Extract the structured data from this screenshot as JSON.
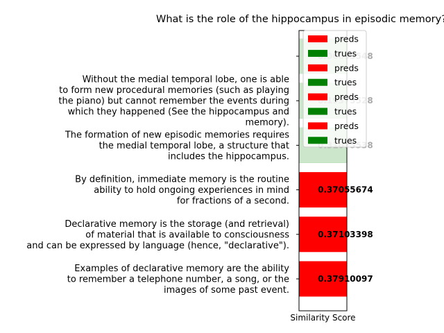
{
  "chart_data": {
    "type": "bar",
    "orientation": "horizontal",
    "title": "What is the role of the hippocampus in episodic memory?",
    "xlabel": "Similarity Score",
    "ylabel": "",
    "xlim": [
      0,
      1
    ],
    "categories": [
      "Examples of declarative memory are the ability\nto remember a telephone number, a song, or the\nimages of some past event.",
      "Declarative memory is the storage (and retrieval)\nof material that is available to consciousness\nand can be expressed by language (hence, \"declarative\").",
      "By definition, immediate memory is the routine\nability to hold ongoing experiences in mind\nfor fractions of a second.",
      "The formation of new episodic memories requires\nthe medial temporal lobe, a structure that\nincludes the hippocampus.",
      "Without the medial temporal lobe, one is able\nto form new procedural memories (such as playing\nthe piano) but cannot remember the events during\nwhich they happened (See the hippocampus and\nmemory).",
      ""
    ],
    "series": [
      {
        "name": "preds",
        "color": "#ff0000",
        "values": [
          1,
          1,
          1,
          0,
          0,
          0
        ]
      },
      {
        "name": "trues",
        "color": "#008000",
        "values": [
          0,
          0,
          0,
          1,
          1,
          1
        ]
      }
    ],
    "overlay_alpha": [
      0,
      0,
      0,
      0.8,
      0.8,
      0.8
    ],
    "value_labels": [
      "0.37910097",
      "0.37103398",
      "0.37055674",
      "0.31075538",
      "0.19373528",
      "0.06893548"
    ],
    "legend": {
      "entries": [
        {
          "name": "preds",
          "color": "#ff0000"
        },
        {
          "name": "trues",
          "color": "#008000"
        },
        {
          "name": "preds",
          "color": "#ff0000"
        },
        {
          "name": "trues",
          "color": "#008000"
        },
        {
          "name": "preds",
          "color": "#ff0000"
        },
        {
          "name": "trues",
          "color": "#008000"
        },
        {
          "name": "preds",
          "color": "#ff0000"
        },
        {
          "name": "trues",
          "color": "#008000"
        }
      ],
      "placement": "upper-right"
    },
    "grid": false
  }
}
